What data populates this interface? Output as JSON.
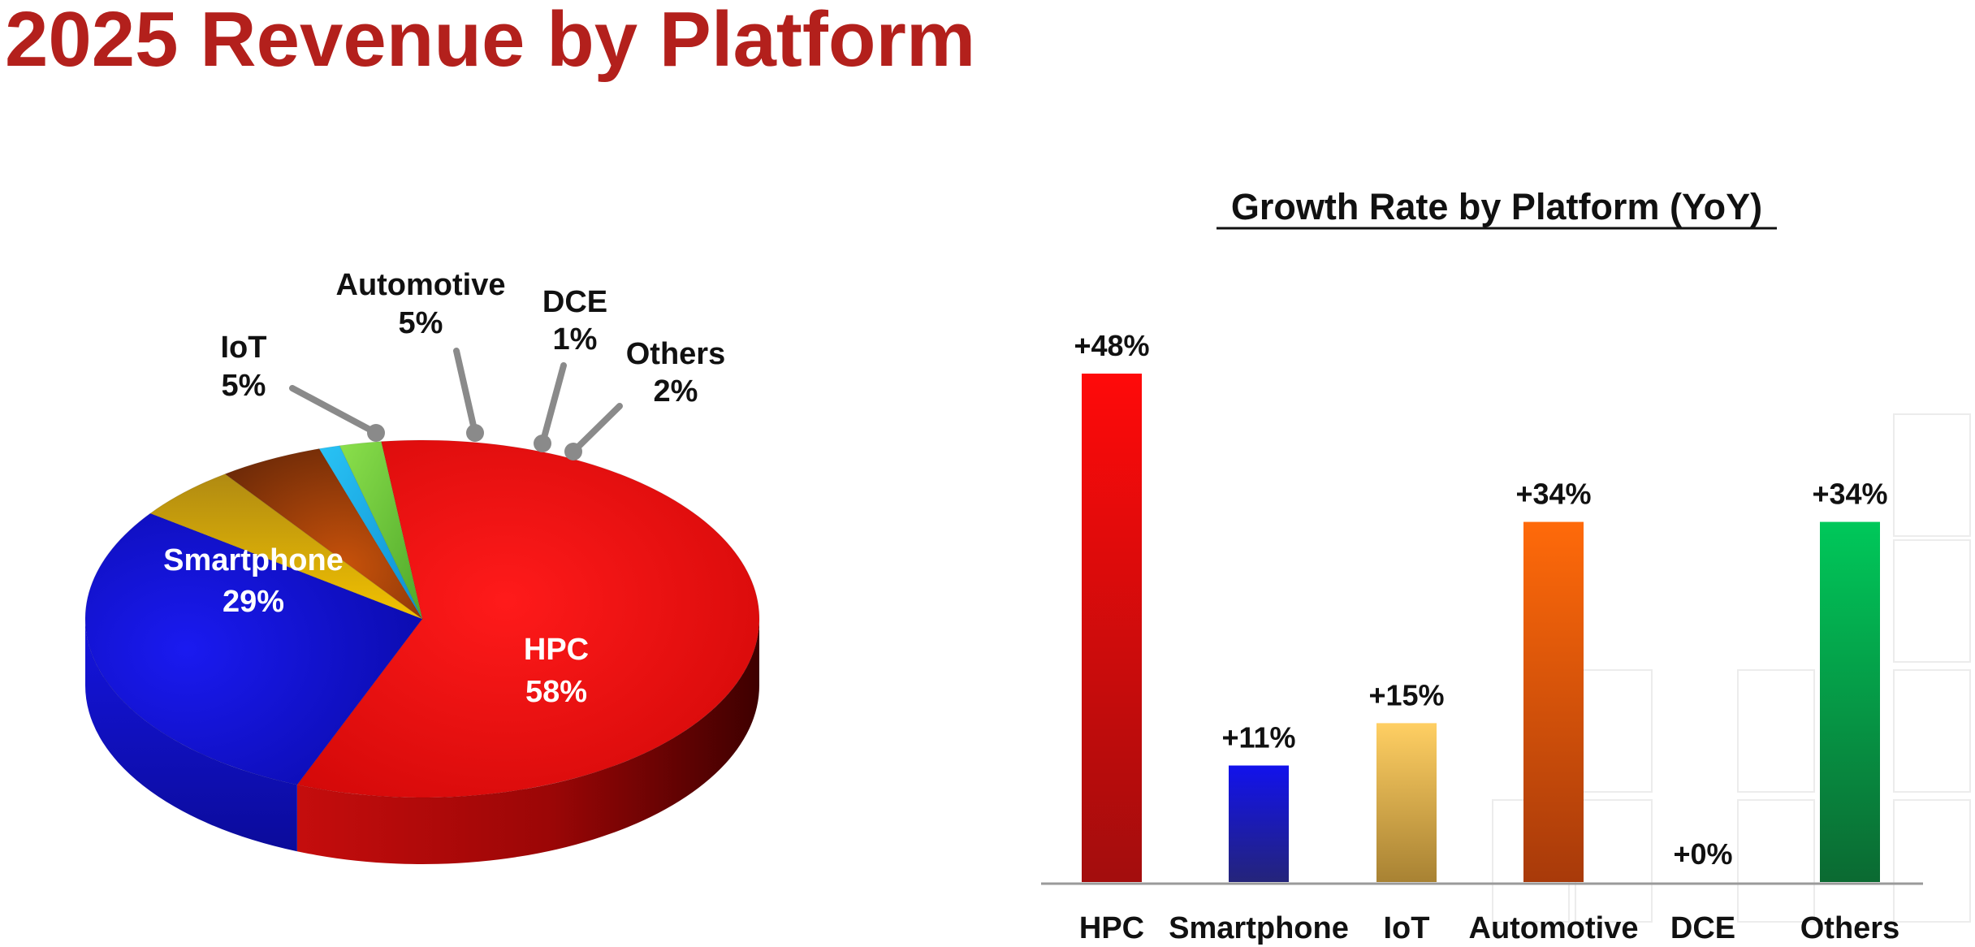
{
  "page": {
    "title": "2025 Revenue by Platform"
  },
  "chart_data": [
    {
      "type": "pie",
      "title": "",
      "slices": [
        {
          "label": "HPC",
          "value": 58,
          "value_label": "58%",
          "color": "#e20a0a"
        },
        {
          "label": "Smartphone",
          "value": 29,
          "value_label": "29%",
          "color": "#1010d6"
        },
        {
          "label": "IoT",
          "value": 5,
          "value_label": "5%",
          "color": "#d9a800"
        },
        {
          "label": "Automotive",
          "value": 5,
          "value_label": "5%",
          "color": "#9a3a08"
        },
        {
          "label": "DCE",
          "value": 1,
          "value_label": "1%",
          "color": "#19aee8"
        },
        {
          "label": "Others",
          "value": 2,
          "value_label": "2%",
          "color": "#72c93a"
        }
      ]
    },
    {
      "type": "bar",
      "title": "Growth Rate by Platform (YoY)",
      "xlabel": "",
      "ylabel": "",
      "ylim": [
        0,
        48
      ],
      "categories": [
        "HPC",
        "Smartphone",
        "IoT",
        "Automotive",
        "DCE",
        "Others"
      ],
      "values": [
        48,
        11,
        15,
        34,
        0,
        34
      ],
      "value_labels": [
        "+48%",
        "+11%",
        "+15%",
        "+34%",
        "+0%",
        "+34%"
      ],
      "colors": [
        "#e20a0a",
        "#1818c8",
        "#f3c250",
        "#f05a10",
        "#3a3a3a",
        "#12a64a"
      ]
    }
  ]
}
